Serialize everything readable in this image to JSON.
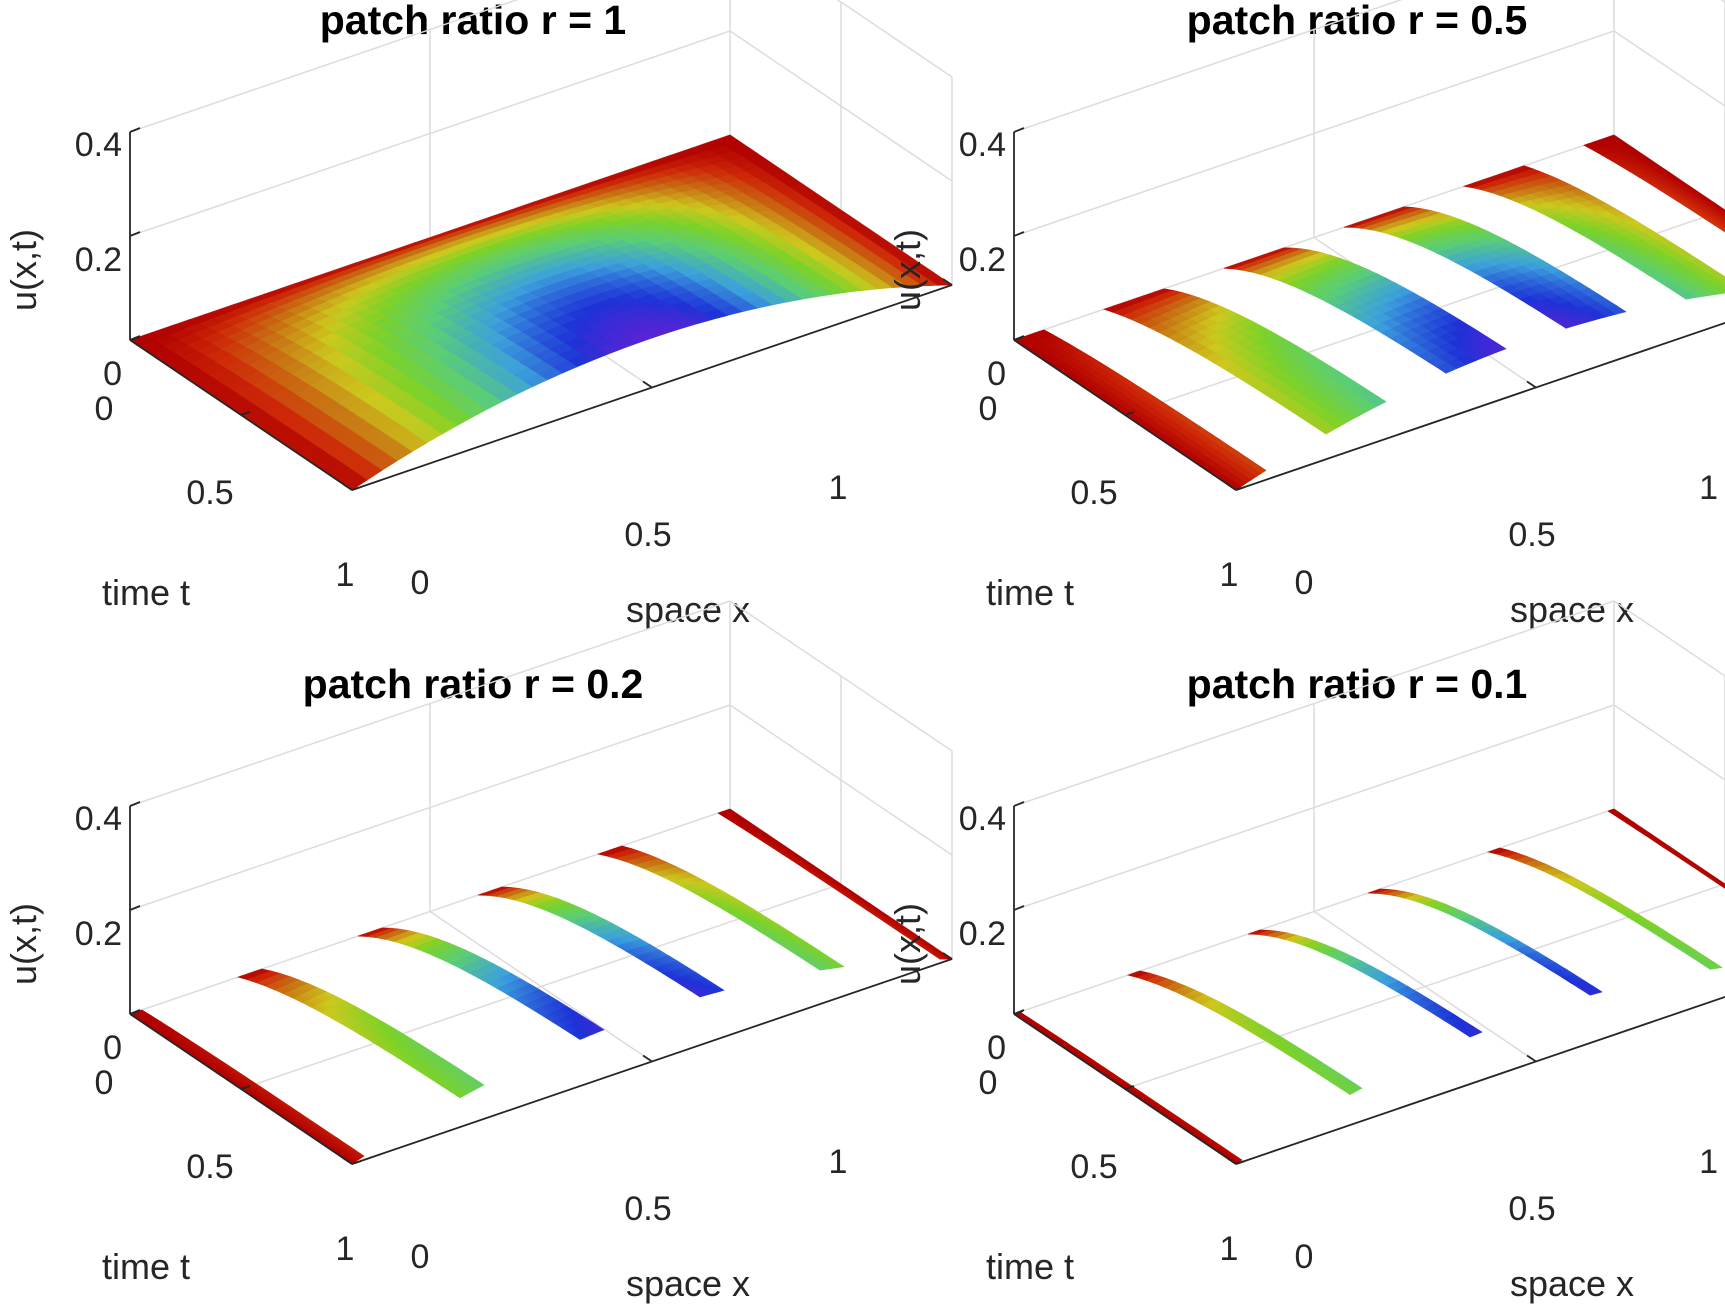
{
  "chart_data": [
    {
      "type": "surface",
      "title": "patch ratio r = 1",
      "xlabel": "space x",
      "ylabel": "time t",
      "zlabel": "u(x,t)",
      "xlim": [
        0,
        1
      ],
      "ylim": [
        0,
        1
      ],
      "zlim": [
        0,
        0.4
      ],
      "xticks": [
        "0",
        "0.5",
        "1"
      ],
      "yticks": [
        "0",
        "0.5",
        "1"
      ],
      "zticks": [
        "0",
        "0.2",
        "0.4"
      ],
      "patch_ratio": 1,
      "patch_centers": [
        0.5
      ],
      "colormap": "jet, reversed (high u = blue/magenta, low u = red)",
      "grid": true
    },
    {
      "type": "surface",
      "title": "patch ratio r = 0.5",
      "xlabel": "space x",
      "ylabel": "time t",
      "zlabel": "u(x,t)",
      "xlim": [
        0,
        1
      ],
      "ylim": [
        0,
        1
      ],
      "zlim": [
        0,
        0.4
      ],
      "xticks": [
        "0",
        "0.5",
        "1"
      ],
      "yticks": [
        "0",
        "0.5",
        "1"
      ],
      "zticks": [
        "0",
        "0.2",
        "0.4"
      ],
      "patch_ratio": 0.5,
      "patch_centers": [
        0,
        0.2,
        0.4,
        0.6,
        0.8,
        1.0
      ],
      "colormap": "jet, reversed (high u = blue/magenta, low u = red)",
      "grid": true
    },
    {
      "type": "surface",
      "title": "patch ratio r = 0.2",
      "xlabel": "space x",
      "ylabel": "time t",
      "zlabel": "u(x,t)",
      "xlim": [
        0,
        1
      ],
      "ylim": [
        0,
        1
      ],
      "zlim": [
        0,
        0.4
      ],
      "xticks": [
        "0",
        "0.5",
        "1"
      ],
      "yticks": [
        "0",
        "0.5",
        "1"
      ],
      "zticks": [
        "0",
        "0.2",
        "0.4"
      ],
      "patch_ratio": 0.2,
      "patch_centers": [
        0,
        0.2,
        0.4,
        0.6,
        0.8,
        1.0
      ],
      "colormap": "jet, reversed (high u = blue/magenta, low u = red)",
      "grid": true
    },
    {
      "type": "surface",
      "title": "patch ratio r = 0.1",
      "xlabel": "space x",
      "ylabel": "time t",
      "zlabel": "u(x,t)",
      "xlim": [
        0,
        1
      ],
      "ylim": [
        0,
        1
      ],
      "zlim": [
        0,
        0.4
      ],
      "xticks": [
        "0",
        "0.5",
        "1"
      ],
      "yticks": [
        "0",
        "0.5",
        "1"
      ],
      "zticks": [
        "0",
        "0.2",
        "0.4"
      ],
      "patch_ratio": 0.1,
      "patch_centers": [
        0,
        0.2,
        0.4,
        0.6,
        0.8,
        1.0
      ],
      "colormap": "jet, reversed (high u = blue/magenta, low u = red)",
      "grid": true
    }
  ]
}
